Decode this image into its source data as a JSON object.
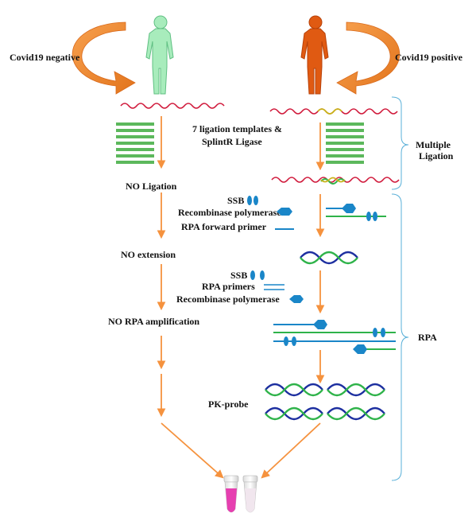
{
  "labels": {
    "covid_negative": "Covid19 negative",
    "covid_positive": "Covid19 positive",
    "ligation_templates_line1": "7 ligation templates &",
    "ligation_templates_line2": "SplintR Ligase",
    "multiple_ligation_line1": "Multiple",
    "multiple_ligation_line2": "Ligation",
    "no_ligation": "NO Ligation",
    "ssb_1": "SSB",
    "recombinase_polymerase_1": "Recombinase polymerase",
    "rpa_forward_primer": "RPA forward primer",
    "no_extension": "NO extension",
    "ssb_2": "SSB",
    "rpa_primers": "RPA primers",
    "recombinase_polymerase_2": "Recombinase polymerase",
    "no_rpa_amplification": "NO RPA amplification",
    "rpa": "RPA",
    "pk_probe": "PK-probe"
  },
  "colors": {
    "arrow": "#f5923e",
    "rna_wave": "#d0183a",
    "template_bar": "#5cb85c",
    "protein": "#1a86c8",
    "dna_green": "#2fb34a",
    "dna_blue": "#1d2fa0",
    "bracket": "#5ab0d8",
    "person_negative": "#a8ecbc",
    "person_positive": "#e05a12",
    "tube_pink": "#e63fb0"
  }
}
